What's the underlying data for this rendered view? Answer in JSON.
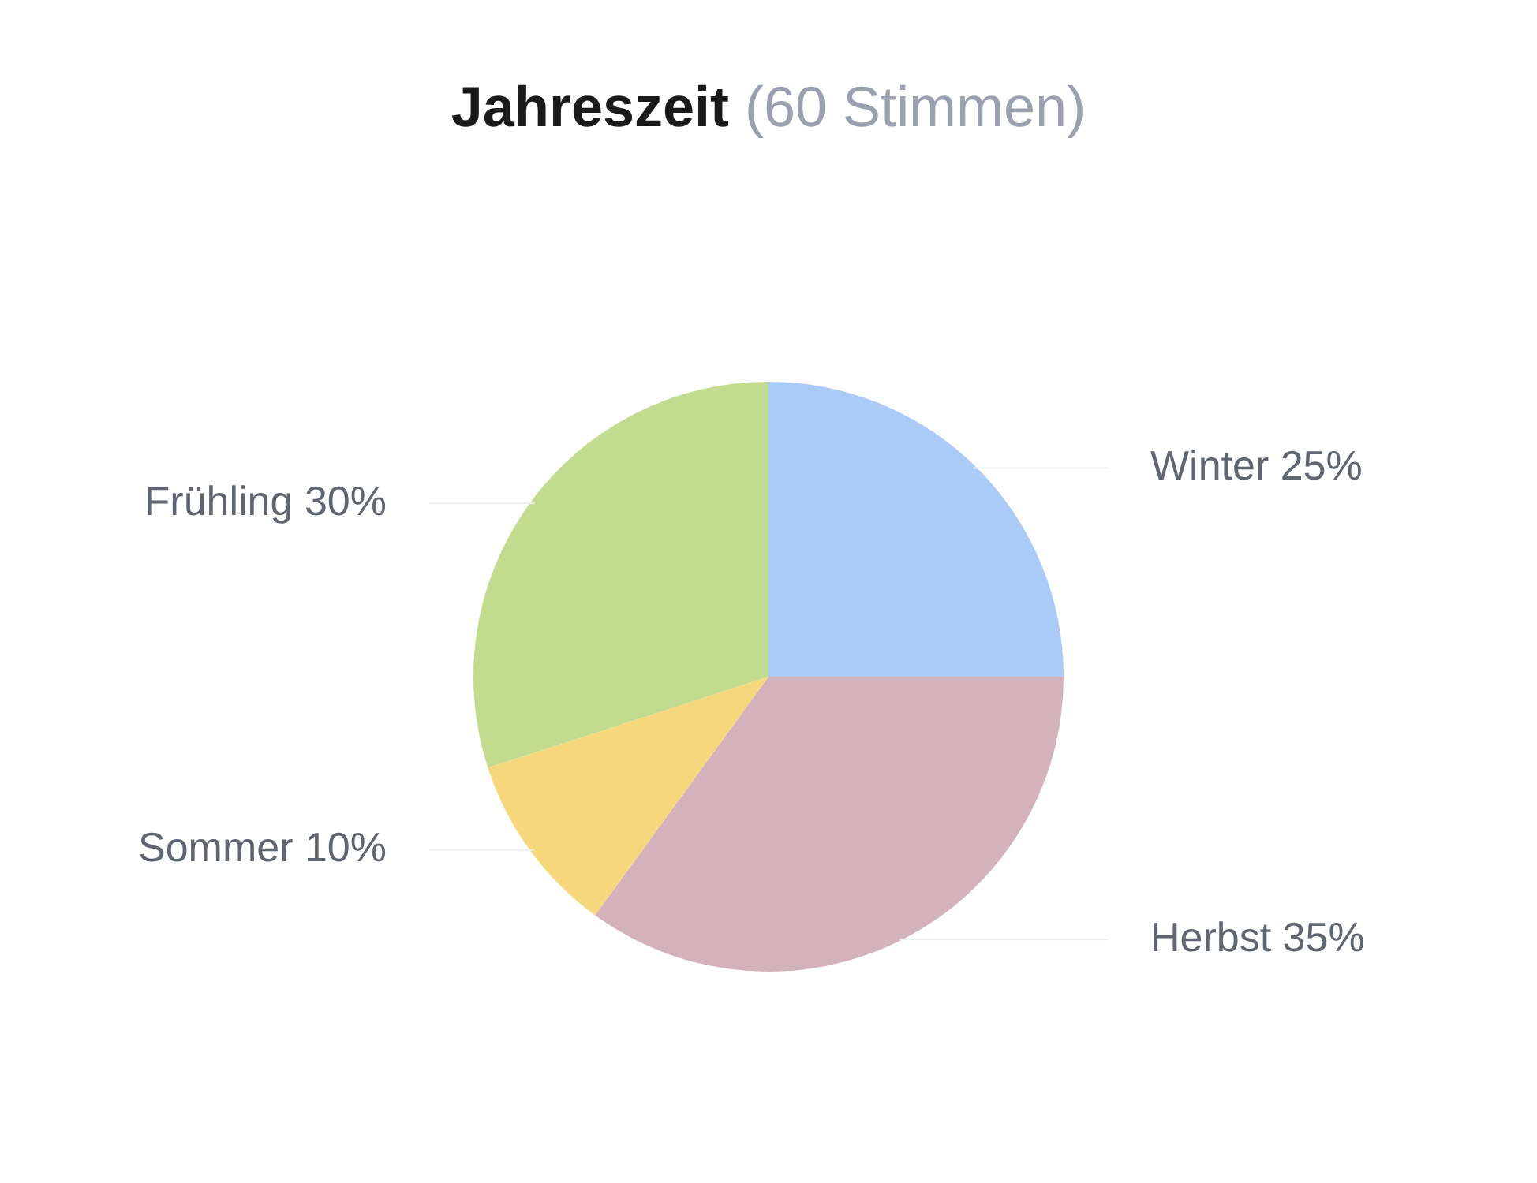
{
  "chart_data": {
    "type": "pie",
    "title": "Jahreszeit",
    "subtitle": "(60 Stimmen)",
    "categories": [
      "Winter",
      "Herbst",
      "Sommer",
      "Frühling"
    ],
    "values": [
      25,
      35,
      10,
      30
    ],
    "value_labels": [
      "25%",
      "35%",
      "10%",
      "30%"
    ],
    "colors": [
      "#aacaf7",
      "#d4b2bc",
      "#f7d77b",
      "#c2dc8f"
    ],
    "legend": false
  }
}
